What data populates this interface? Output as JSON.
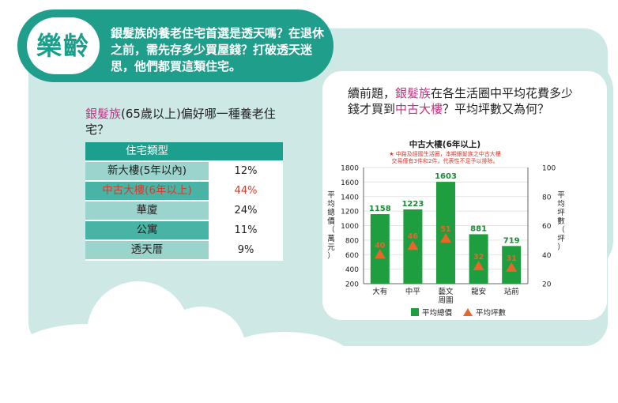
{
  "header": {
    "badge": "樂齡",
    "title": "銀髮族的養老住宅首選是透天嗎？在退休之前，需先存多少買屋錢？打破透天迷思，他們都買這類住宅。"
  },
  "left_question": {
    "highlight": "銀髮族",
    "rest": "(65歲以上)偏好哪一種養老住宅？"
  },
  "table": {
    "header": "住宅類型",
    "rows": [
      {
        "type": "新大樓(5年以內)",
        "pct": "12%"
      },
      {
        "type": "中古大樓(6年以上)",
        "pct": "44%"
      },
      {
        "type": "華廈",
        "pct": "24%"
      },
      {
        "type": "公寓",
        "pct": "11%"
      },
      {
        "type": "透天厝",
        "pct": "9%"
      }
    ]
  },
  "right_question": {
    "p1": "續前題，",
    "p2": "銀髮族",
    "p3": "在各生活圈中平均花費多少錢才買到",
    "p4": "中古大樓",
    "p5": "？平均坪數又為何？"
  },
  "chart_data": {
    "type": "bar",
    "title": "中古大樓(6年以上)",
    "note_line1": "★ 中路及經國生活圈，本期銀髮族之中古大樓",
    "note_line2": "交易僅有3件和2件，代表性不足予以排除。",
    "categories": [
      "大有",
      "中平",
      "藝文\n周圍",
      "龍安",
      "站前"
    ],
    "series": [
      {
        "name": "平均總價",
        "values": [
          1158,
          1223,
          1603,
          881,
          719
        ],
        "color": "#1e9e3e"
      },
      {
        "name": "平均坪數",
        "values": [
          40,
          46,
          51,
          32,
          31
        ],
        "color": "#e8662a"
      }
    ],
    "ylabel": "平均總價（萬元）",
    "ylabel2": "平均坪數（坪）",
    "ylim": [
      200,
      1800
    ],
    "y_ticks": [
      200,
      400,
      600,
      800,
      1000,
      1200,
      1400,
      1600,
      1800
    ],
    "y2lim": [
      20,
      100
    ],
    "y2_ticks": [
      20,
      40,
      60,
      80,
      100
    ],
    "legend_position": "bottom"
  }
}
